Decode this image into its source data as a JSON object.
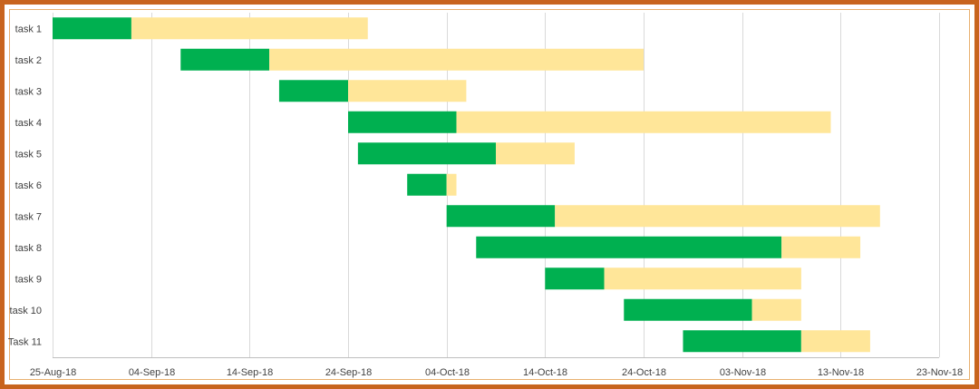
{
  "chart_data": {
    "type": "bar",
    "orientation": "horizontal-stacked-gantt",
    "title": "",
    "xlabel": "",
    "ylabel": "",
    "categories": [
      "task 1",
      "task 2",
      "task 3",
      "task 4",
      "task 5",
      "task 6",
      "task 7",
      "task 8",
      "task 9",
      "task 10",
      "Task 11"
    ],
    "start_dates": [
      "2018-08-25",
      "2018-09-07",
      "2018-09-17",
      "2018-09-24",
      "2018-09-25",
      "2018-09-30",
      "2018-10-04",
      "2018-10-07",
      "2018-10-14",
      "2018-10-22",
      "2018-10-28"
    ],
    "series": [
      {
        "values_days": [
          8,
          9,
          7,
          11,
          14,
          4,
          11,
          31,
          6,
          13,
          12
        ],
        "color": "#00b050"
      },
      {
        "values_days": [
          24,
          38,
          12,
          38,
          8,
          1,
          33,
          8,
          20,
          5,
          7
        ],
        "color": "#ffe699"
      }
    ],
    "xlim": [
      "2018-08-25",
      "2018-11-23"
    ],
    "x_ticks": [
      "25-Aug-18",
      "04-Sep-18",
      "14-Sep-18",
      "24-Sep-18",
      "04-Oct-18",
      "14-Oct-18",
      "24-Oct-18",
      "03-Nov-18",
      "13-Nov-18",
      "23-Nov-18"
    ],
    "grid": true,
    "legend": "none"
  }
}
